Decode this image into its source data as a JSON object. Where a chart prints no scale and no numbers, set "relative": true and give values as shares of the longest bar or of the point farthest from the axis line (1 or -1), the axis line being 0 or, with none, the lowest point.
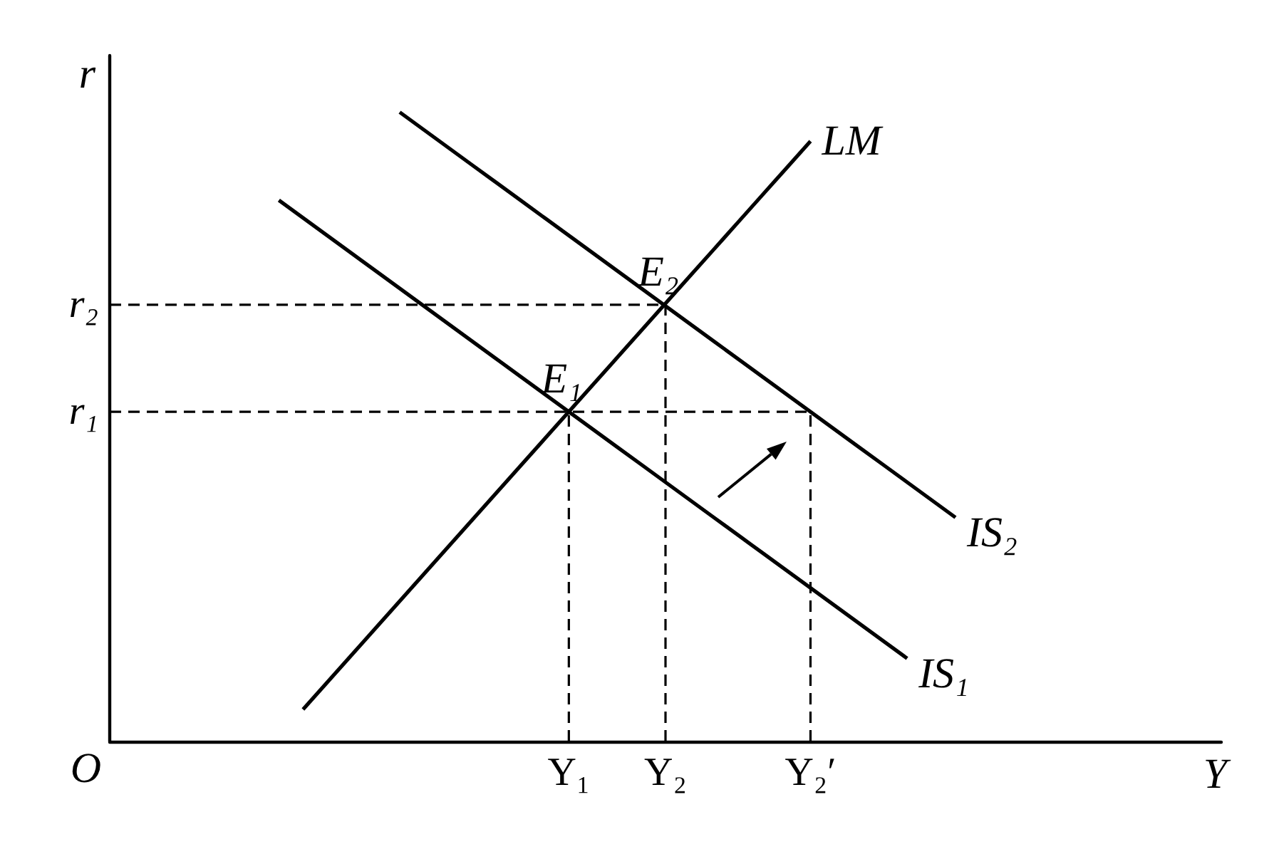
{
  "chart_data": {
    "type": "line",
    "relative": true,
    "xlabel": "Y",
    "ylabel": "r",
    "categories": [
      null,
      null,
      null,
      null,
      null,
      null,
      null,
      null,
      null,
      null,
      null,
      null,
      null,
      null,
      null,
      null,
      null,
      null,
      null,
      "Y₁",
      null,
      null,
      null,
      "Y₂",
      null,
      null,
      null,
      null,
      null,
      "Y₂′",
      null,
      null,
      null,
      null,
      null,
      null,
      null,
      null,
      null,
      null,
      null,
      null,
      null,
      null,
      null,
      null,
      null
    ],
    "grid": false,
    "marker": "none",
    "annotations": [
      "O",
      {
        "text": "E₁",
        "x": "Y₁",
        "y": 0.524
      },
      {
        "text": "E₂",
        "x": "Y₂",
        "y": 0.694
      }
    ],
    "series": [
      {
        "name": "LM",
        "color": "#000000",
        "values": [
          null,
          null,
          null,
          null,
          null,
          null,
          null,
          null,
          0.051,
          0.094,
          0.137,
          0.18,
          0.223,
          0.266,
          0.309,
          0.352,
          0.395,
          0.438,
          0.481,
          0.524,
          0.567,
          0.61,
          0.653,
          0.696,
          0.739,
          0.782,
          0.825,
          0.868,
          0.911,
          0.954,
          null,
          null,
          null,
          null,
          null,
          null,
          null,
          null,
          null,
          null,
          null,
          null,
          null,
          null,
          null,
          null,
          null
        ]
      },
      {
        "name": "IS₁",
        "color": "#000000",
        "values": [
          null,
          null,
          null,
          null,
          null,
          null,
          null,
          0.86,
          0.832,
          0.804,
          0.776,
          0.748,
          0.72,
          0.692,
          0.664,
          0.636,
          0.608,
          0.58,
          0.552,
          0.524,
          0.496,
          0.468,
          0.44,
          0.412,
          0.384,
          0.356,
          0.328,
          0.3,
          0.272,
          0.244,
          0.216,
          0.188,
          0.16,
          0.132,
          null,
          null,
          null,
          null,
          null,
          null,
          null,
          null,
          null,
          null,
          null,
          null,
          null
        ]
      },
      {
        "name": "IS₂",
        "color": "#000000",
        "values": [
          null,
          null,
          null,
          null,
          null,
          null,
          null,
          null,
          null,
          null,
          null,
          null,
          1.0,
          0.972,
          0.944,
          0.916,
          0.888,
          0.86,
          0.832,
          0.804,
          0.776,
          0.748,
          0.72,
          0.692,
          0.664,
          0.636,
          0.608,
          0.58,
          0.552,
          0.524,
          0.496,
          0.468,
          0.44,
          0.412,
          0.384,
          0.356,
          null,
          null,
          null,
          null,
          null,
          null,
          null,
          null,
          null,
          null,
          null
        ]
      },
      {
        "name": "r₂",
        "type": "line",
        "line_style": "dashed",
        "color": "#000000",
        "values": [
          0.694,
          0.694,
          0.694,
          0.694,
          0.694,
          0.694,
          0.694,
          0.694,
          0.694,
          0.694,
          0.694,
          0.694,
          0.694,
          0.694,
          0.694,
          0.694,
          0.694,
          0.694,
          0.694,
          0.694,
          0.694,
          0.694,
          0.694,
          0.694,
          null,
          null,
          null,
          null,
          null,
          null,
          null,
          null,
          null,
          null,
          null,
          null,
          null,
          null,
          null,
          null,
          null,
          null,
          null,
          null,
          null,
          null,
          null
        ]
      },
      {
        "name": "r₁",
        "type": "line",
        "line_style": "dashed",
        "color": "#000000",
        "values": [
          0.524,
          0.524,
          0.524,
          0.524,
          0.524,
          0.524,
          0.524,
          0.524,
          0.524,
          0.524,
          0.524,
          0.524,
          0.524,
          0.524,
          0.524,
          0.524,
          0.524,
          0.524,
          0.524,
          0.524,
          0.524,
          0.524,
          0.524,
          0.524,
          0.524,
          0.524,
          0.524,
          0.524,
          0.524,
          0.524,
          null,
          null,
          null,
          null,
          null,
          null,
          null,
          null,
          null,
          null,
          null,
          null,
          null,
          null,
          null,
          null,
          null
        ]
      },
      {
        "type": "line",
        "line_style": "dashed",
        "color": "#000000",
        "x": [
          "Y₁",
          "Y₁"
        ],
        "values": [
          0,
          0.524
        ]
      },
      {
        "type": "line",
        "line_style": "dashed",
        "color": "#000000",
        "x": [
          "Y₂",
          "Y₂"
        ],
        "values": [
          0,
          0.694
        ]
      },
      {
        "type": "line",
        "line_style": "dashed",
        "color": "#000000",
        "x": [
          "Y₂′",
          "Y₂′"
        ],
        "values": [
          0,
          0.524
        ]
      }
    ]
  }
}
